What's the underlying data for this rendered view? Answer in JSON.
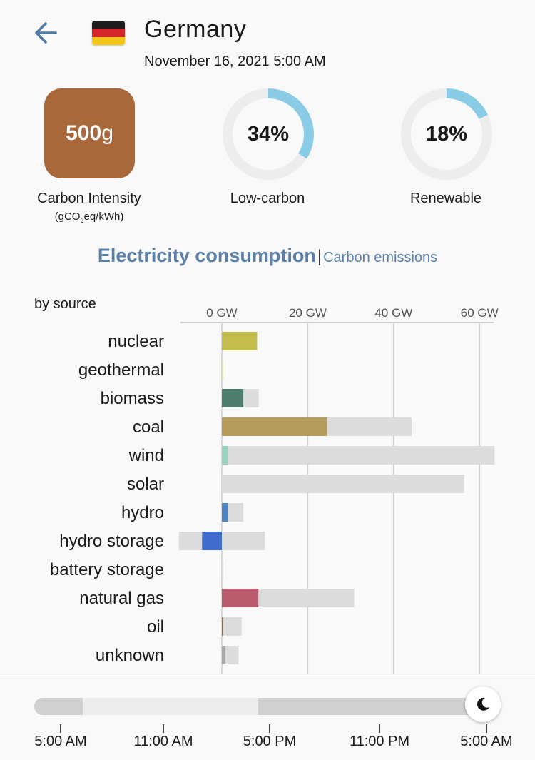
{
  "header": {
    "country": "Germany",
    "datetime": "November 16, 2021 5:00 AM",
    "flag_colors": [
      "#1c1c1c",
      "#d7262b",
      "#f2c518"
    ],
    "back_icon": "back-arrow-icon"
  },
  "metrics": {
    "carbon_intensity": {
      "value": "500",
      "unit_suffix": "g",
      "label": "Carbon Intensity",
      "unit_prefix": "(gCO",
      "unit_sub": "2",
      "unit_rest": "eq/kWh)",
      "color": "#a8683a"
    },
    "low_carbon": {
      "value": "34%",
      "fraction": 0.34,
      "label": "Low-carbon",
      "color": "#8acbe5"
    },
    "renewable": {
      "value": "18%",
      "fraction": 0.18,
      "label": "Renewable",
      "color": "#8acbe5"
    }
  },
  "tabs": {
    "active": "Electricity consumption",
    "separator": "|",
    "inactive": "Carbon emissions"
  },
  "chart_data": {
    "type": "bar",
    "subtitle": "by source",
    "x_unit": "GW",
    "xlim": [
      -10,
      64
    ],
    "ticks": [
      0,
      20,
      40,
      60
    ],
    "tick_labels": [
      "0 GW",
      "20 GW",
      "40 GW",
      "60 GW"
    ],
    "categories": [
      "nuclear",
      "geothermal",
      "biomass",
      "coal",
      "wind",
      "solar",
      "hydro",
      "hydro storage",
      "battery storage",
      "natural gas",
      "oil",
      "unknown"
    ],
    "series": [
      {
        "role": "production",
        "values": [
          8.2,
          0.2,
          5.0,
          24.5,
          1.5,
          0.0,
          1.5,
          -4.6,
          0.0,
          8.5,
          0.3,
          0.8
        ]
      },
      {
        "role": "capacity_positive",
        "values": [
          8.2,
          0.2,
          8.6,
          44.2,
          63.5,
          56.4,
          5.0,
          10.0,
          0.3,
          30.8,
          4.6,
          3.9
        ]
      },
      {
        "role": "capacity_negative",
        "values": [
          0,
          0,
          0,
          0,
          0,
          0,
          0,
          -10.0,
          0,
          0,
          0,
          0
        ]
      }
    ],
    "colors": [
      "#c3bd4d",
      "#f0e276",
      "#4f7e6e",
      "#b69c5c",
      "#98d3c1",
      "#f5d050",
      "#4e83c4",
      "#3f6ccd",
      "#b5b5b5",
      "#b95c6e",
      "#8c6c5c",
      "#a8a8a8"
    ],
    "capacity_color": "#dcdcdc",
    "grid": true
  },
  "timeline": {
    "labels": [
      "5:00 AM",
      "11:00 AM",
      "5:00 PM",
      "11:00 PM",
      "5:00 AM"
    ],
    "position": 1.0,
    "thumb_icon": "moon-icon",
    "night_color": "#d0d0d0",
    "day_color": "#ececec"
  }
}
